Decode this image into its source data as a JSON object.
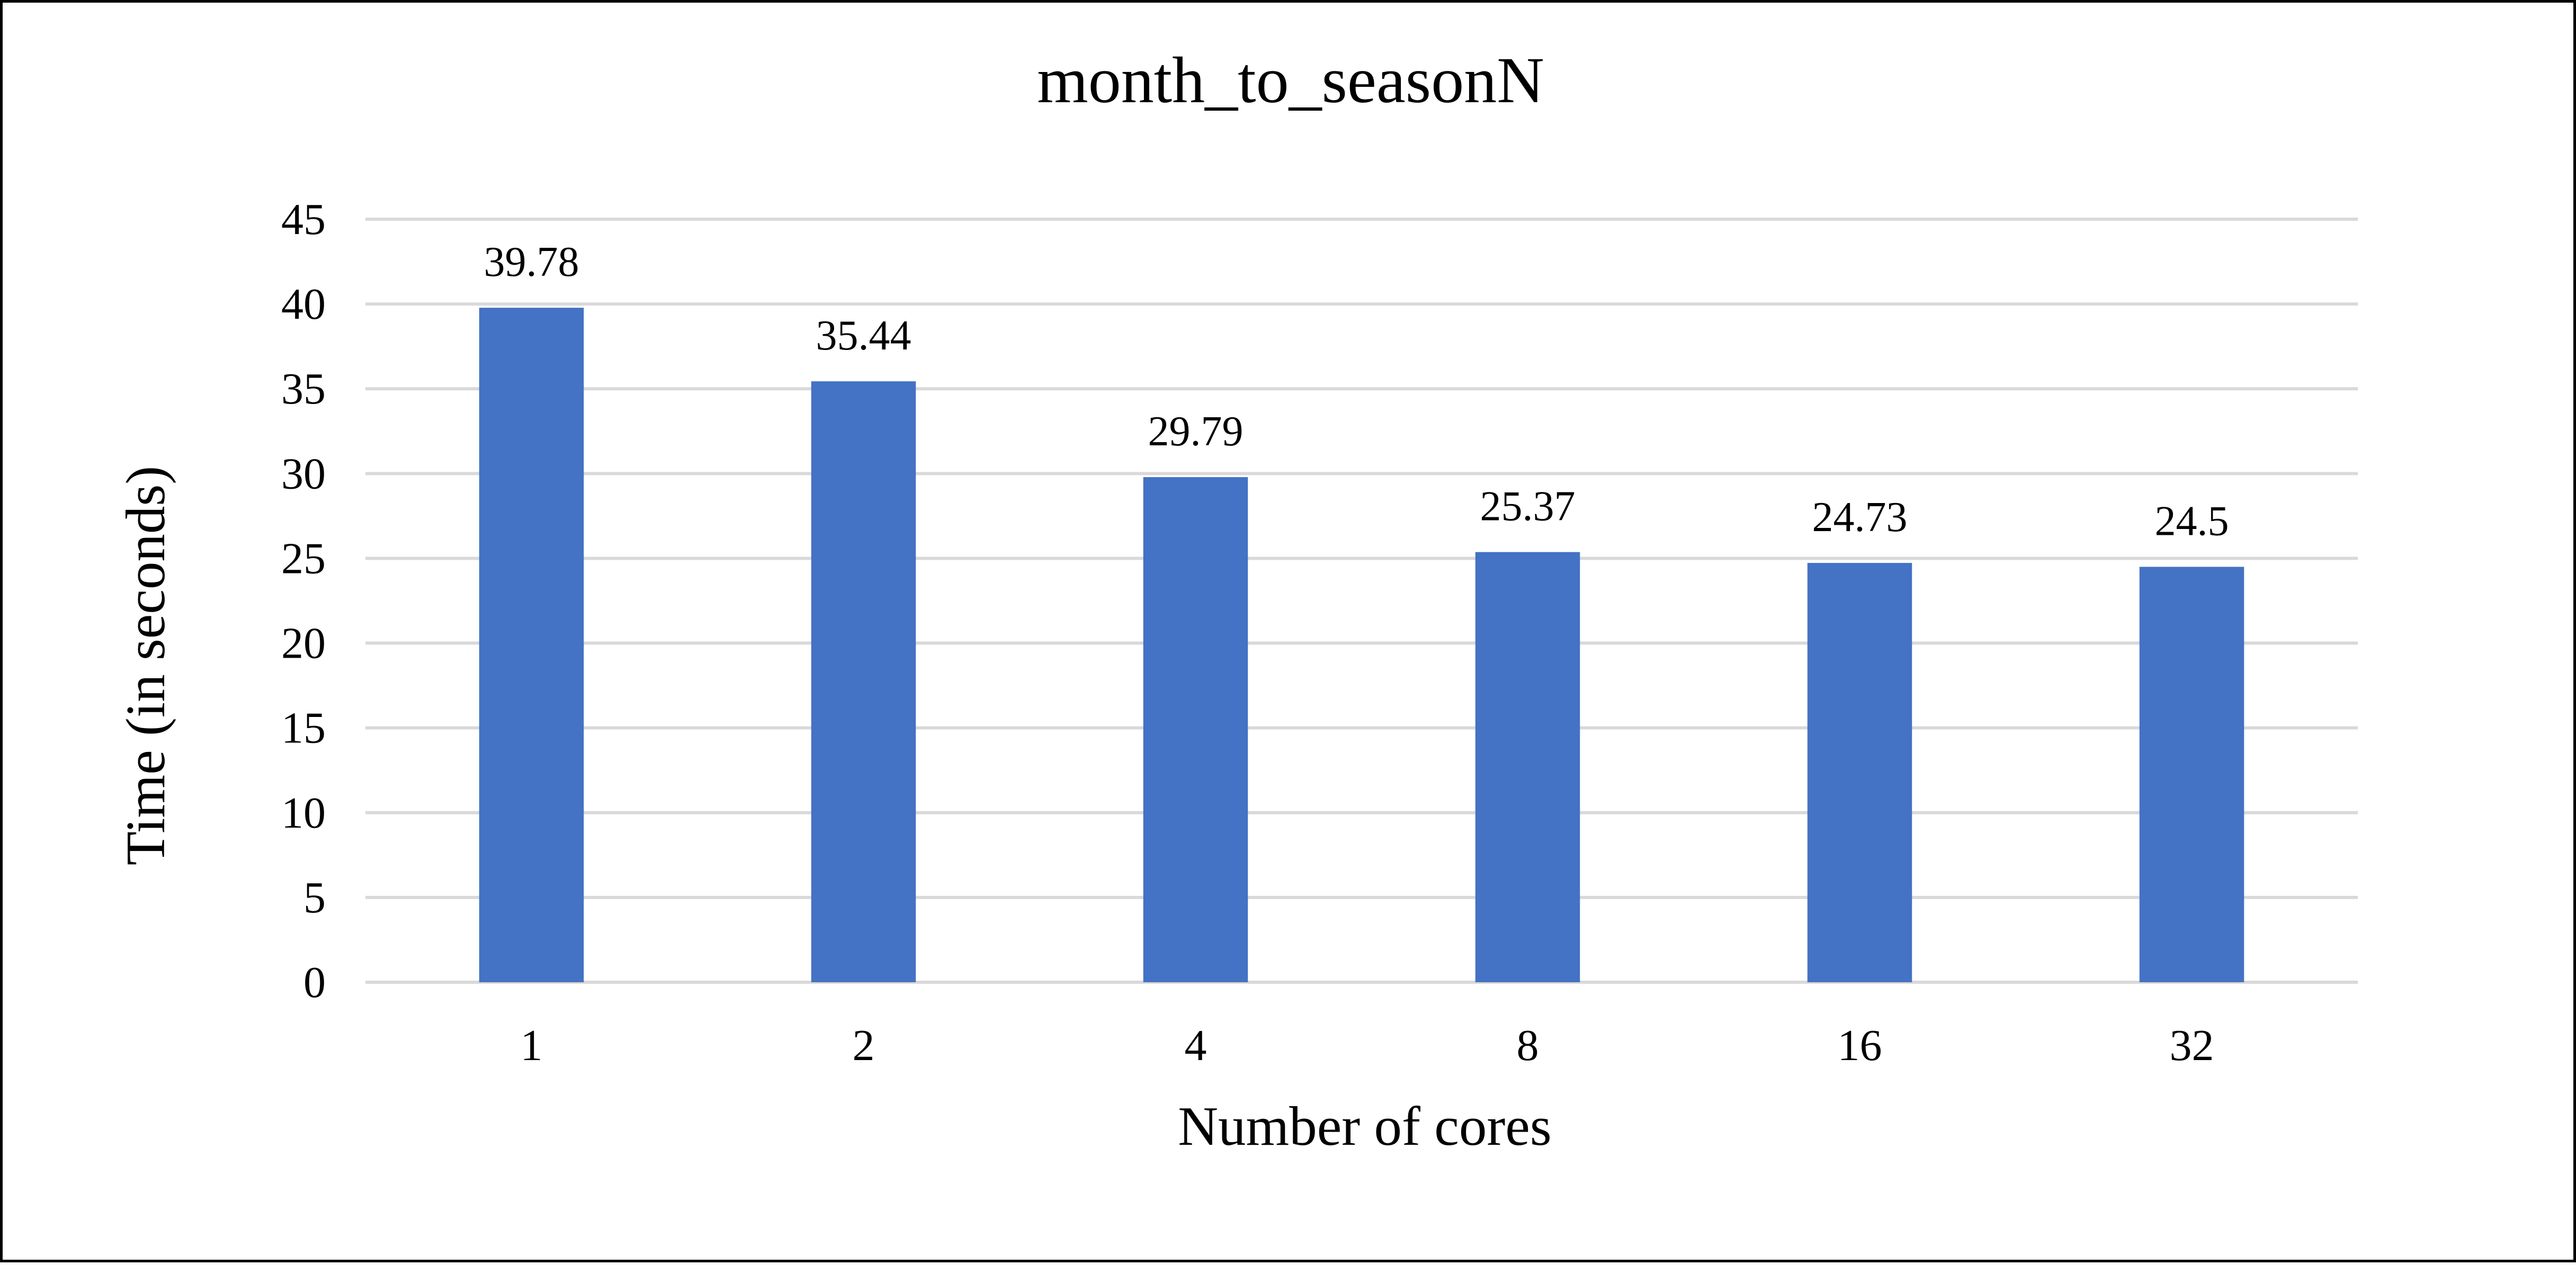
{
  "chart_data": {
    "type": "bar",
    "title": "month_to_seasonN",
    "xlabel": "Number of cores",
    "ylabel": "Time  (in seconds)",
    "categories": [
      "1",
      "2",
      "4",
      "8",
      "16",
      "32"
    ],
    "values": [
      39.78,
      35.44,
      29.79,
      25.37,
      24.73,
      24.5
    ],
    "value_labels": [
      "39.78",
      "35.44",
      "29.79",
      "25.37",
      "24.73",
      "24.5"
    ],
    "ylim": [
      0,
      45
    ],
    "yticks": [
      "0",
      "5",
      "10",
      "15",
      "20",
      "25",
      "30",
      "35",
      "40",
      "45"
    ],
    "grid": true,
    "legend": "none",
    "colors": {
      "bar": "#4472C4",
      "grid": "#D9D9D9",
      "text": "#000000",
      "border": "#000000"
    }
  }
}
